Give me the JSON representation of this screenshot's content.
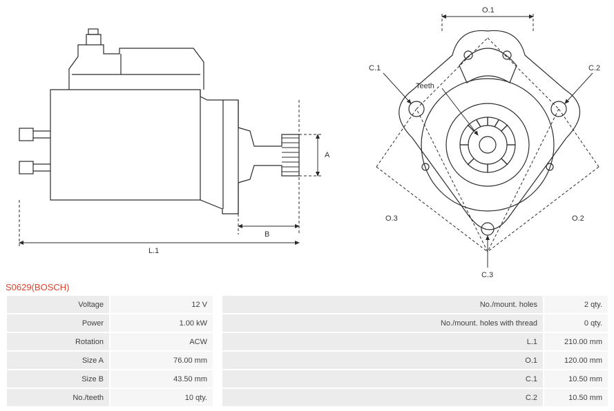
{
  "title": "S0629(BOSCH)",
  "colors": {
    "accent": "#d9432f",
    "stroke": "#2a2a2a",
    "dashed": "#2a2a2a",
    "text": "#404040",
    "row_label_bg": "#ececec",
    "row_value_bg": "#f6f6f6",
    "page_bg": "#ffffff"
  },
  "dimensions_left": {
    "A": "A",
    "B": "B",
    "L1": "L.1"
  },
  "dimensions_right": {
    "O1": "O.1",
    "O2": "O.2",
    "O3": "O.3",
    "C1": "C.1",
    "C2": "C.2",
    "C3": "C.3",
    "Teeth": "Teeth"
  },
  "spec_rows": [
    {
      "l1": "Voltage",
      "v1": "12 V",
      "l2": "No./mount. holes",
      "v2": "2 qty."
    },
    {
      "l1": "Power",
      "v1": "1.00 kW",
      "l2": "No./mount. holes with thread",
      "v2": "0 qty."
    },
    {
      "l1": "Rotation",
      "v1": "ACW",
      "l2": "L.1",
      "v2": "210.00 mm"
    },
    {
      "l1": "Size A",
      "v1": "76.00 mm",
      "l2": "O.1",
      "v2": "120.00 mm"
    },
    {
      "l1": "Size B",
      "v1": "43.50 mm",
      "l2": "C.1",
      "v2": "10.50 mm"
    },
    {
      "l1": "No./teeth",
      "v1": "10 qty.",
      "l2": "C.2",
      "v2": "10.50 mm"
    }
  ],
  "svg": {
    "stroke_width": 1.2,
    "dash": "4,3"
  }
}
